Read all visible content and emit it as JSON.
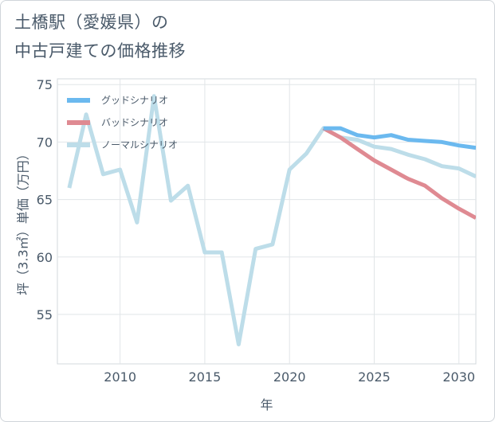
{
  "title_lines": [
    "土橋駅（愛媛県）の",
    "中古戸建ての価格推移"
  ],
  "chart_data": {
    "type": "line",
    "xlabel": "年",
    "ylabel": "坪（3.3㎡）単価（万円）",
    "xlim": [
      2006.3,
      2031
    ],
    "ylim": [
      50.7,
      75.5
    ],
    "xticks": [
      2010,
      2015,
      2020,
      2025,
      2030
    ],
    "yticks": [
      55,
      60,
      65,
      70,
      75
    ],
    "grid": true,
    "legend_position": "top-left",
    "series": [
      {
        "name": "グッドシナリオ",
        "color": "#6bb9ef",
        "x": [
          2022,
          2023,
          2024,
          2025,
          2026,
          2027,
          2028,
          2029,
          2030,
          2031
        ],
        "y": [
          71.2,
          71.2,
          70.6,
          70.4,
          70.6,
          70.2,
          70.1,
          70.0,
          69.7,
          69.5
        ]
      },
      {
        "name": "バッドシナリオ",
        "color": "#df8a92",
        "x": [
          2022,
          2023,
          2024,
          2025,
          2026,
          2027,
          2028,
          2029,
          2030,
          2031
        ],
        "y": [
          71.2,
          70.4,
          69.4,
          68.4,
          67.6,
          66.8,
          66.2,
          65.1,
          64.2,
          63.4
        ]
      },
      {
        "name": "ノーマルシナリオ",
        "color": "#bddde9",
        "x": [
          2007,
          2008,
          2009,
          2010,
          2011,
          2012,
          2013,
          2014,
          2015,
          2016,
          2017,
          2018,
          2019,
          2020,
          2021,
          2022,
          2023,
          2024,
          2025,
          2026,
          2027,
          2028,
          2029,
          2030,
          2031
        ],
        "y": [
          66.0,
          72.4,
          67.2,
          67.6,
          63.0,
          74.0,
          64.9,
          66.2,
          60.4,
          60.4,
          52.4,
          60.7,
          61.1,
          67.6,
          69.0,
          71.2,
          70.4,
          70.2,
          69.6,
          69.4,
          68.9,
          68.5,
          67.9,
          67.7,
          67.0
        ]
      }
    ]
  }
}
